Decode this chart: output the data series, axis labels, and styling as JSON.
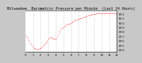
{
  "title": "Milwaukee  Barometric Pressure per Minute  (Last 24 Hours)",
  "bg_color": "#c8c8c8",
  "plot_bg_color": "#ffffff",
  "line_color": "#ff0000",
  "grid_color": "#999999",
  "text_color": "#000000",
  "y_min": 29.35,
  "y_max": 30.28,
  "y_ticks": [
    29.4,
    29.5,
    29.6,
    29.7,
    29.8,
    29.9,
    30.0,
    30.1,
    30.2
  ],
  "x_points": [
    0,
    1,
    2,
    3,
    4,
    5,
    6,
    7,
    8,
    9,
    10,
    11,
    12,
    13,
    14,
    15,
    16,
    17,
    18,
    19,
    20,
    21,
    22,
    23,
    24,
    25,
    26,
    27,
    28,
    29,
    30,
    31,
    32,
    33,
    34,
    35,
    36,
    37,
    38,
    39,
    40,
    41,
    42,
    43,
    44,
    45,
    46,
    47,
    48,
    49,
    50,
    51,
    52,
    53,
    54,
    55,
    56,
    57,
    58,
    59,
    60,
    61,
    62,
    63,
    64,
    65,
    66,
    67,
    68,
    69,
    70,
    71,
    72,
    73,
    74,
    75,
    76,
    77,
    78,
    79,
    80,
    81,
    82,
    83,
    84,
    85,
    86,
    87,
    88,
    89,
    90,
    91,
    92,
    93,
    94,
    95,
    96,
    97,
    98,
    99,
    100,
    101,
    102,
    103,
    104,
    105,
    106,
    107,
    108,
    109,
    110,
    111,
    112,
    113,
    114,
    115,
    116,
    117,
    118,
    119,
    120,
    121,
    122,
    123,
    124,
    125,
    126,
    127,
    128,
    129,
    130,
    131,
    132,
    133,
    134,
    135,
    136,
    137,
    138,
    139,
    140,
    141,
    142,
    143
  ],
  "y_points": [
    29.72,
    29.7,
    29.68,
    29.66,
    29.64,
    29.62,
    29.6,
    29.57,
    29.54,
    29.52,
    29.5,
    29.48,
    29.46,
    29.44,
    29.43,
    29.42,
    29.42,
    29.41,
    29.41,
    29.41,
    29.41,
    29.41,
    29.42,
    29.42,
    29.43,
    29.44,
    29.46,
    29.47,
    29.49,
    29.51,
    29.52,
    29.54,
    29.55,
    29.57,
    29.59,
    29.61,
    29.64,
    29.65,
    29.66,
    29.68,
    29.68,
    29.67,
    29.66,
    29.65,
    29.64,
    29.63,
    29.63,
    29.64,
    29.65,
    29.67,
    29.7,
    29.73,
    29.76,
    29.79,
    29.82,
    29.84,
    29.86,
    29.88,
    29.89,
    29.9,
    29.91,
    29.92,
    29.93,
    29.94,
    29.95,
    29.96,
    29.97,
    29.97,
    29.97,
    29.98,
    29.98,
    29.99,
    30.0,
    30.01,
    30.02,
    30.03,
    30.04,
    30.05,
    30.06,
    30.06,
    30.07,
    30.07,
    30.08,
    30.08,
    30.09,
    30.09,
    30.1,
    30.1,
    30.11,
    30.11,
    30.12,
    30.12,
    30.13,
    30.13,
    30.14,
    30.14,
    30.15,
    30.15,
    30.16,
    30.16,
    30.17,
    30.17,
    30.18,
    30.18,
    30.18,
    30.19,
    30.19,
    30.19,
    30.2,
    30.2,
    30.2,
    30.2,
    30.21,
    30.21,
    30.21,
    30.21,
    30.22,
    30.22,
    30.22,
    30.22,
    30.22,
    30.22,
    30.22,
    30.22,
    30.22,
    30.22,
    30.22,
    30.22,
    30.22,
    30.22,
    30.22,
    30.22,
    30.22,
    30.22,
    30.22,
    30.22,
    30.22,
    30.22,
    30.22,
    30.22,
    30.22,
    30.22,
    30.22,
    30.22
  ],
  "x_tick_positions": [
    0,
    12,
    24,
    36,
    48,
    60,
    72,
    84,
    96,
    108,
    120,
    132,
    144
  ],
  "x_tick_labels": [
    "0",
    "1",
    "2",
    "3",
    "4",
    "5",
    "6",
    "7",
    "8",
    "9",
    "10",
    "11",
    "12"
  ],
  "vgrid_positions": [
    12,
    24,
    36,
    48,
    60,
    72,
    84,
    96,
    108,
    120,
    132
  ],
  "title_fontsize": 3.8,
  "tick_fontsize": 2.8
}
